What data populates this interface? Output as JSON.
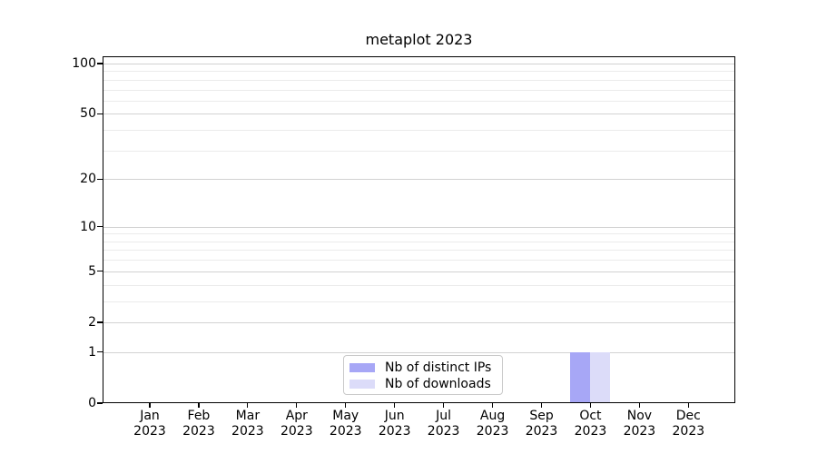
{
  "chart_data": {
    "type": "bar",
    "title": "metaplot 2023",
    "categories": [
      {
        "label": "Jan",
        "sub": "2023"
      },
      {
        "label": "Feb",
        "sub": "2023"
      },
      {
        "label": "Mar",
        "sub": "2023"
      },
      {
        "label": "Apr",
        "sub": "2023"
      },
      {
        "label": "May",
        "sub": "2023"
      },
      {
        "label": "Jun",
        "sub": "2023"
      },
      {
        "label": "Jul",
        "sub": "2023"
      },
      {
        "label": "Aug",
        "sub": "2023"
      },
      {
        "label": "Sep",
        "sub": "2023"
      },
      {
        "label": "Oct",
        "sub": "2023"
      },
      {
        "label": "Nov",
        "sub": "2023"
      },
      {
        "label": "Dec",
        "sub": "2023"
      }
    ],
    "series": [
      {
        "name": "Nb of distinct IPs",
        "color": "#a7a7f6",
        "values": [
          0,
          0,
          0,
          0,
          0,
          0,
          0,
          0,
          0,
          1,
          0,
          0
        ]
      },
      {
        "name": "Nb of downloads",
        "color": "#dcdcf9",
        "values": [
          0,
          0,
          0,
          0,
          0,
          0,
          0,
          0,
          0,
          1,
          0,
          0
        ]
      }
    ],
    "y_scale": "log1p",
    "y_ticks": [
      0,
      1,
      2,
      5,
      10,
      20,
      50,
      100
    ],
    "y_minor_gridlines": [
      3,
      4,
      6,
      7,
      8,
      9,
      30,
      40,
      60,
      70,
      80,
      90
    ],
    "ylim": [
      0,
      110
    ],
    "xlabel": "",
    "ylabel": "",
    "grid": "horizontal major+minor",
    "legend": {
      "position": "lower center"
    }
  }
}
